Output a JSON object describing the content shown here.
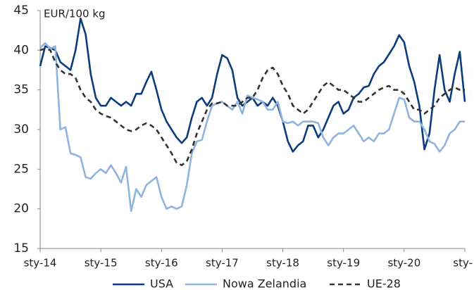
{
  "chart_data": {
    "type": "line",
    "y_label": "EUR/100 kg",
    "categories": [
      "sty-14",
      null,
      null,
      null,
      null,
      null,
      null,
      null,
      null,
      null,
      null,
      null,
      "sty-15",
      null,
      null,
      null,
      null,
      null,
      null,
      null,
      null,
      null,
      null,
      null,
      "sty-16",
      null,
      null,
      null,
      null,
      null,
      null,
      null,
      null,
      null,
      null,
      null,
      "sty-17",
      null,
      null,
      null,
      null,
      null,
      null,
      null,
      null,
      null,
      null,
      null,
      "sty-18",
      null,
      null,
      null,
      null,
      null,
      null,
      null,
      null,
      null,
      null,
      null,
      "sty-19",
      null,
      null,
      null,
      null,
      null,
      null,
      null,
      null,
      null,
      null,
      null,
      "sty-20",
      null,
      null,
      null,
      null,
      null,
      null,
      null,
      null,
      null,
      null,
      null,
      "sty-"
    ],
    "series": [
      {
        "name": "USA",
        "color": "#0b3d7e",
        "dashed": false,
        "values": [
          38,
          40.5,
          40.3,
          40,
          38.5,
          38,
          37.5,
          40,
          44,
          42,
          37,
          34,
          33,
          33,
          34,
          33.5,
          33,
          33.5,
          33,
          34.5,
          34.5,
          36,
          37.3,
          35,
          32.5,
          31,
          30,
          29,
          28.3,
          29,
          31.5,
          33.5,
          34,
          33,
          34,
          37,
          39.4,
          39,
          37.5,
          34,
          33,
          33.5,
          34,
          33,
          33.5,
          33,
          34,
          33,
          31,
          28.5,
          27.2,
          28,
          28.5,
          30.5,
          30.5,
          29,
          30,
          31.5,
          33,
          33.5,
          32,
          32.5,
          34,
          34.5,
          35.3,
          35.5,
          37,
          38,
          38.5,
          39.5,
          40.5,
          41.9,
          41,
          38,
          36,
          33,
          27.5,
          29.5,
          35,
          39.4,
          35,
          33.5,
          37,
          39.8,
          33.5
        ]
      },
      {
        "name": "Nowa Zelandia",
        "color": "#8fb4df",
        "dashed": false,
        "values": [
          40.3,
          40.9,
          40.2,
          40.5,
          30,
          30.3,
          27,
          26.8,
          26.5,
          24,
          23.8,
          24.5,
          25,
          24.5,
          25.5,
          24.5,
          23.3,
          25.3,
          19.7,
          22.5,
          21.5,
          23,
          23.5,
          24,
          21.5,
          20,
          20.3,
          20,
          20.3,
          23,
          27,
          28.5,
          28.7,
          31,
          33,
          33.3,
          33.5,
          33,
          32.5,
          33.5,
          32,
          34.3,
          34,
          33.8,
          33.5,
          32.5,
          32.5,
          33.5,
          31,
          30.8,
          31,
          30.5,
          31,
          31,
          31,
          30.8,
          29,
          28,
          29,
          29.5,
          29.5,
          30,
          30.5,
          29.5,
          28.5,
          29,
          28.5,
          29.5,
          29.5,
          30,
          32,
          34,
          33.8,
          31.5,
          31,
          31,
          30,
          28.5,
          28.2,
          27.2,
          28,
          29.5,
          30,
          31,
          31
        ]
      },
      {
        "name": "UE-28",
        "color": "#333333",
        "dashed": true,
        "values": [
          40,
          40.2,
          40,
          38.5,
          37.5,
          37,
          37,
          36.5,
          35,
          34,
          33.5,
          32.5,
          32,
          31.7,
          31.5,
          31,
          30.5,
          30,
          29.8,
          30,
          30.5,
          30.8,
          30.5,
          30,
          29,
          28,
          27,
          25.8,
          25.5,
          26,
          27.5,
          29.5,
          31,
          32.5,
          33.3,
          33.3,
          33.5,
          33,
          33,
          33,
          33.5,
          34,
          34,
          35,
          36.5,
          37.5,
          37.8,
          37,
          35.5,
          34.5,
          33,
          32.5,
          32,
          32.5,
          33.5,
          34.5,
          35.5,
          36,
          35.5,
          35,
          35,
          34.5,
          34,
          33.5,
          33.5,
          34,
          34.5,
          35,
          35.3,
          35.5,
          35,
          35,
          34.5,
          33.5,
          32.5,
          32.5,
          32,
          32.5,
          33,
          34,
          34.5,
          35,
          35.3,
          35,
          35
        ]
      }
    ],
    "ylim": [
      15,
      45
    ],
    "yticks": [
      15,
      20,
      25,
      30,
      35,
      40,
      45
    ],
    "grid": false,
    "legend": "bottom"
  }
}
